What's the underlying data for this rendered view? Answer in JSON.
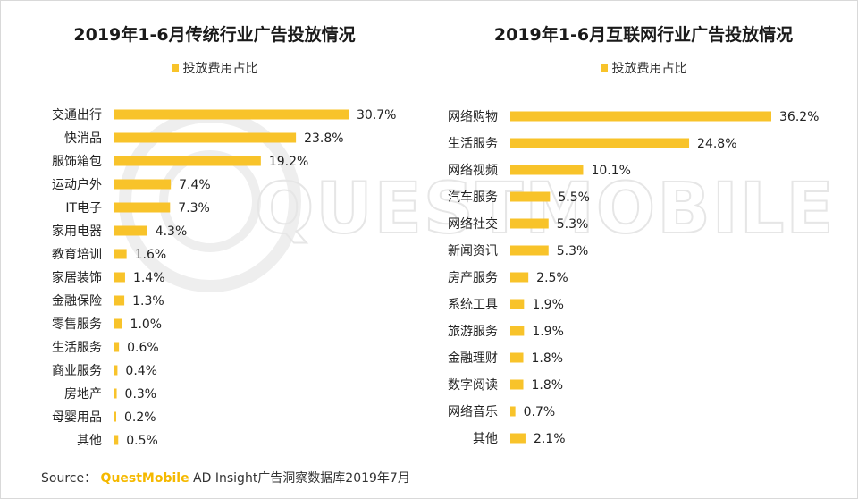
{
  "watermark": "QUESTMOBILE",
  "colors": {
    "bar": "#f8c32a",
    "brand": "#f5b900"
  },
  "source": {
    "prefix": "Source：",
    "brand": "QuestMobile",
    "suffix": " AD Insight广告洞察数据库2019年7月"
  },
  "chart_data": [
    {
      "type": "bar",
      "orientation": "horizontal",
      "title": "2019年1-6月传统行业广告投放情况",
      "legend": "投放费用占比",
      "unit": "%",
      "categories": [
        "交通出行",
        "快消品",
        "服饰箱包",
        "运动户外",
        "IT电子",
        "家用电器",
        "教育培训",
        "家居装饰",
        "金融保险",
        "零售服务",
        "生活服务",
        "商业服务",
        "房地产",
        "母婴用品",
        "其他"
      ],
      "values": [
        30.7,
        23.8,
        19.2,
        7.4,
        7.3,
        4.3,
        1.6,
        1.4,
        1.3,
        1.0,
        0.6,
        0.4,
        0.3,
        0.2,
        0.5
      ],
      "value_labels": [
        "30.7%",
        "23.8%",
        "19.2%",
        "7.4%",
        "7.3%",
        "4.3%",
        "1.6%",
        "1.4%",
        "1.3%",
        "1.0%",
        "0.6%",
        "0.4%",
        "0.3%",
        "0.2%",
        "0.5%"
      ]
    },
    {
      "type": "bar",
      "orientation": "horizontal",
      "title": "2019年1-6月互联网行业广告投放情况",
      "legend": "投放费用占比",
      "unit": "%",
      "categories": [
        "网络购物",
        "生活服务",
        "网络视频",
        "汽车服务",
        "网络社交",
        "新闻资讯",
        "房产服务",
        "系统工具",
        "旅游服务",
        "金融理财",
        "数字阅读",
        "网络音乐",
        "其他"
      ],
      "values": [
        36.2,
        24.8,
        10.1,
        5.5,
        5.3,
        5.3,
        2.5,
        1.9,
        1.9,
        1.8,
        1.8,
        0.7,
        2.1
      ],
      "value_labels": [
        "36.2%",
        "24.8%",
        "10.1%",
        "5.5%",
        "5.3%",
        "5.3%",
        "2.5%",
        "1.9%",
        "1.9%",
        "1.8%",
        "1.8%",
        "0.7%",
        "2.1%"
      ]
    }
  ]
}
